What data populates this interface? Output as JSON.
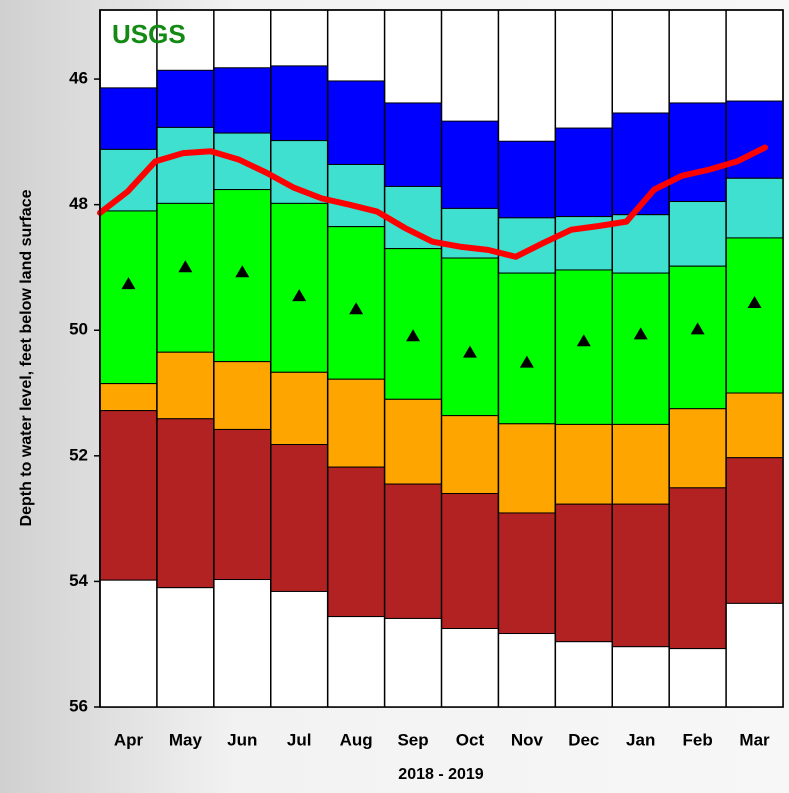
{
  "chart_data": {
    "type": "percentile_boxes",
    "logo": "USGS",
    "ylabel": "Depth to water level, feet below land surface",
    "xlabel": "2018 - 2019",
    "categories": [
      "Apr",
      "May",
      "Jun",
      "Jul",
      "Aug",
      "Sep",
      "Oct",
      "Nov",
      "Dec",
      "Jan",
      "Feb",
      "Mar"
    ],
    "ylim": [
      44.9,
      56
    ],
    "yticks": [
      46,
      48,
      50,
      52,
      54,
      56
    ],
    "inverted": true,
    "series": [
      {
        "color": "#0000ff",
        "values": [
          46.14,
          45.86,
          45.82,
          45.79,
          46.03,
          46.38,
          46.67,
          46.99,
          46.78,
          46.54,
          46.38,
          46.35
        ]
      },
      {
        "color": "#40e0d0",
        "values": [
          47.12,
          46.77,
          46.86,
          46.98,
          47.36,
          47.71,
          48.06,
          48.21,
          48.19,
          48.16,
          47.95,
          47.58
        ]
      },
      {
        "color": "#00ff00",
        "values": [
          48.1,
          47.98,
          47.76,
          47.98,
          48.35,
          48.7,
          48.85,
          49.09,
          49.04,
          49.09,
          48.98,
          48.53
        ]
      },
      {
        "color": "#ffa500",
        "values": [
          50.85,
          50.35,
          50.5,
          50.67,
          50.78,
          51.1,
          51.36,
          51.49,
          51.5,
          51.5,
          51.25,
          51.0
        ]
      },
      {
        "color": "#b22222",
        "values": [
          51.28,
          51.41,
          51.58,
          51.82,
          52.18,
          52.45,
          52.6,
          52.91,
          52.77,
          52.77,
          52.51,
          52.03
        ]
      },
      {
        "color": "#ffffff",
        "values": [
          53.98,
          54.1,
          53.97,
          54.16,
          54.56,
          54.59,
          54.75,
          54.83,
          54.96,
          55.04,
          55.07,
          54.35
        ]
      }
    ],
    "median": {
      "color": "#000000",
      "values": [
        49.25,
        48.98,
        49.06,
        49.44,
        49.65,
        50.08,
        50.34,
        50.5,
        50.16,
        50.05,
        49.97,
        49.55
      ]
    },
    "water_level": {
      "color": "#ff0000",
      "values": [
        48.13,
        47.79,
        47.31,
        47.18,
        47.15,
        47.28,
        47.49,
        47.73,
        47.9,
        48.0,
        48.11,
        48.37,
        48.59,
        48.67,
        48.72,
        48.83,
        48.61,
        48.4,
        48.34,
        48.27,
        47.76,
        47.54,
        47.44,
        47.31,
        47.09
      ]
    }
  }
}
